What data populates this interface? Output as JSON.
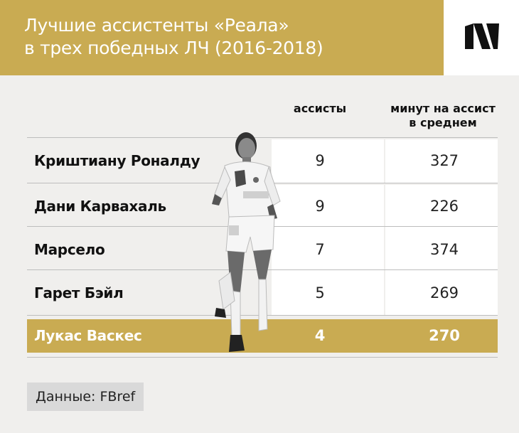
{
  "header": {
    "title_line1": "Лучшие ассистенты «Реала»",
    "title_line2": "в трех победных ЛЧ (2016-2018)",
    "accent_color": "#c9ab52",
    "logo_icon": "sports-ru-logo-icon"
  },
  "table": {
    "columns": [
      "ассисты",
      "минут на ассист в среднем"
    ],
    "column_minutes_line1": "минут на ассист",
    "column_minutes_line2": "в среднем",
    "rows": [
      {
        "name": "Криштиану Роналду",
        "assists": "9",
        "minutes": "327"
      },
      {
        "name": "Дани Карвахаль",
        "assists": "9",
        "minutes": "226"
      },
      {
        "name": "Марсело",
        "assists": "7",
        "minutes": "374"
      },
      {
        "name": "Гарет Бэйл",
        "assists": "5",
        "minutes": "269"
      },
      {
        "name": "Лукас Васкес",
        "assists": "4",
        "minutes": "270"
      }
    ]
  },
  "footer": {
    "source": "Данные: FBref"
  }
}
